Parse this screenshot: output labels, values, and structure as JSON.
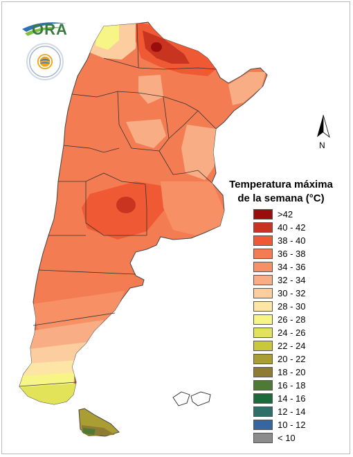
{
  "logo": {
    "text": "ORA"
  },
  "north_arrow": {
    "label": "N"
  },
  "legend": {
    "title_line1": "Temperatura máxima",
    "title_line2": "de la semana (°C)",
    "items": [
      {
        "label": ">42",
        "color": "#9b0d0d"
      },
      {
        "label": "40 - 42",
        "color": "#c8341f"
      },
      {
        "label": "38 - 40",
        "color": "#ef5a34"
      },
      {
        "label": "36 - 38",
        "color": "#f47c52"
      },
      {
        "label": "34 - 36",
        "color": "#f79065"
      },
      {
        "label": "32 - 34",
        "color": "#f9ad84"
      },
      {
        "label": "30 - 32",
        "color": "#fbcd9f"
      },
      {
        "label": "28 - 30",
        "color": "#fde5a6"
      },
      {
        "label": "26 - 28",
        "color": "#f6f585"
      },
      {
        "label": "24 - 26",
        "color": "#e3e35a"
      },
      {
        "label": "22 - 24",
        "color": "#c9c83a"
      },
      {
        "label": "20 - 22",
        "color": "#aa9d33"
      },
      {
        "label": "18 - 20",
        "color": "#8e7c32"
      },
      {
        "label": "16 - 18",
        "color": "#4f7a35"
      },
      {
        "label": "14 - 16",
        "color": "#1c6a3a"
      },
      {
        "label": "12 - 14",
        "color": "#2f6f6a"
      },
      {
        "label": "10 - 12",
        "color": "#3566a0"
      },
      {
        "label": "< 10",
        "color": "#8b8b8b"
      }
    ]
  }
}
